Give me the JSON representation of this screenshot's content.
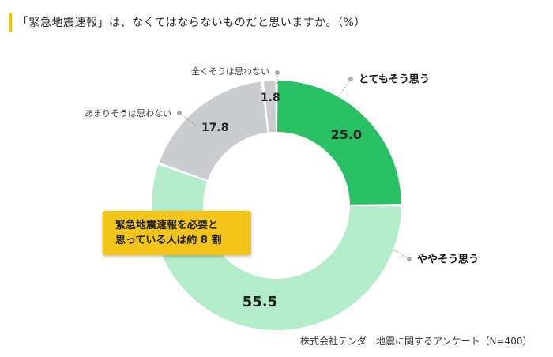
{
  "title": "「緊急地震速報」は、なくてはならないものだと思いますか。（%）",
  "callout": {
    "line1": "緊急地震速報を必要と",
    "line2": "思っている人は約 8 割"
  },
  "footer": "株式会社テンダ　地震に関するアンケート（N=400）",
  "chart_data": {
    "type": "pie",
    "categories": [
      "とてもそう思う",
      "ややそう思う",
      "あまりそうは思わない",
      "全くそうは思わない"
    ],
    "values": [
      25.0,
      55.5,
      17.8,
      1.8
    ],
    "value_labels": [
      "25.0",
      "55.5",
      "17.8",
      "1.8"
    ],
    "colors": [
      "#27c062",
      "#b3ecc8",
      "#cbcccf",
      "#cbcccf"
    ],
    "donut": true,
    "title": ""
  }
}
